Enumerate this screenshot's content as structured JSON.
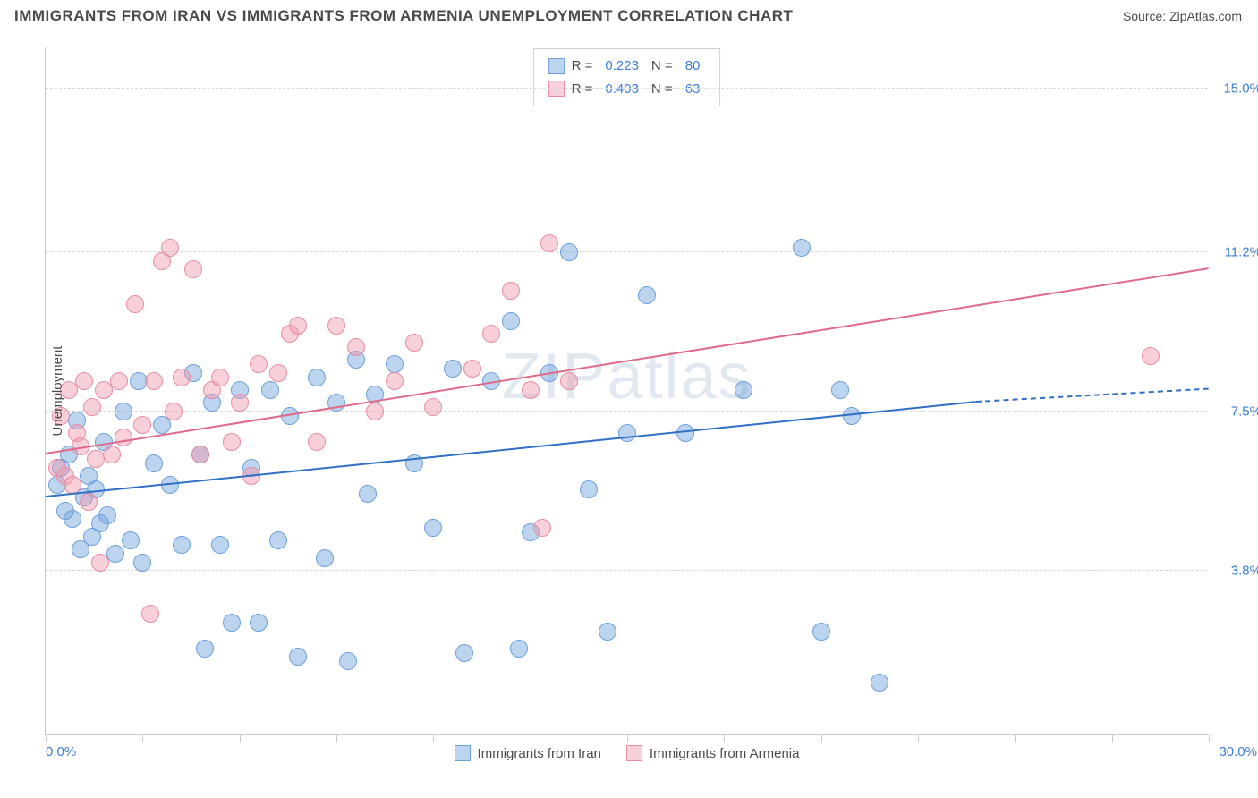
{
  "title": "IMMIGRANTS FROM IRAN VS IMMIGRANTS FROM ARMENIA UNEMPLOYMENT CORRELATION CHART",
  "source": "Source: ZipAtlas.com",
  "watermark": {
    "zip": "ZIP",
    "atlas": "atlas"
  },
  "y_axis": {
    "title": "Unemployment"
  },
  "chart": {
    "type": "scatter",
    "xlim": [
      0,
      30
    ],
    "ylim": [
      0,
      16
    ],
    "background_color": "#ffffff",
    "grid_color": "#d8d8d8",
    "marker_size": 20,
    "x_ticks": [
      0,
      2.5,
      5,
      7.5,
      10,
      12.5,
      15,
      17.5,
      20,
      22.5,
      25,
      27.5,
      30
    ],
    "y_gridlines": [
      3.8,
      7.5,
      11.2,
      15.0
    ],
    "y_tick_labels": [
      "3.8%",
      "7.5%",
      "11.2%",
      "15.0%"
    ],
    "x_min_label": "0.0%",
    "x_max_label": "30.0%"
  },
  "series": [
    {
      "key": "iran",
      "label": "Immigrants from Iran",
      "fill": "rgba(108,160,220,0.45)",
      "stroke": "#6ca0dc",
      "line_color": "#2f6fc4",
      "r_value": "0.223",
      "n_value": "80",
      "trend": {
        "x1": 0,
        "y1": 5.5,
        "x2": 24,
        "y2": 7.7,
        "dash_x2": 30,
        "dash_y2": 8.0
      },
      "points": [
        [
          0.3,
          5.8
        ],
        [
          0.4,
          6.2
        ],
        [
          0.5,
          5.2
        ],
        [
          0.6,
          6.5
        ],
        [
          0.7,
          5.0
        ],
        [
          0.8,
          7.3
        ],
        [
          0.9,
          4.3
        ],
        [
          1.0,
          5.5
        ],
        [
          1.1,
          6.0
        ],
        [
          1.2,
          4.6
        ],
        [
          1.3,
          5.7
        ],
        [
          1.4,
          4.9
        ],
        [
          1.5,
          6.8
        ],
        [
          1.6,
          5.1
        ],
        [
          1.8,
          4.2
        ],
        [
          2.0,
          7.5
        ],
        [
          2.2,
          4.5
        ],
        [
          2.4,
          8.2
        ],
        [
          2.5,
          4.0
        ],
        [
          2.8,
          6.3
        ],
        [
          3.0,
          7.2
        ],
        [
          3.2,
          5.8
        ],
        [
          3.5,
          4.4
        ],
        [
          3.8,
          8.4
        ],
        [
          4.0,
          6.5
        ],
        [
          4.1,
          2.0
        ],
        [
          4.3,
          7.7
        ],
        [
          4.5,
          4.4
        ],
        [
          4.8,
          2.6
        ],
        [
          5.0,
          8.0
        ],
        [
          5.3,
          6.2
        ],
        [
          5.5,
          2.6
        ],
        [
          5.8,
          8.0
        ],
        [
          6.0,
          4.5
        ],
        [
          6.3,
          7.4
        ],
        [
          6.5,
          1.8
        ],
        [
          7.0,
          8.3
        ],
        [
          7.2,
          4.1
        ],
        [
          7.5,
          7.7
        ],
        [
          7.8,
          1.7
        ],
        [
          8.0,
          8.7
        ],
        [
          8.3,
          5.6
        ],
        [
          8.5,
          7.9
        ],
        [
          9.0,
          8.6
        ],
        [
          9.5,
          6.3
        ],
        [
          10.0,
          4.8
        ],
        [
          10.5,
          8.5
        ],
        [
          10.8,
          1.9
        ],
        [
          11.5,
          8.2
        ],
        [
          12.0,
          9.6
        ],
        [
          12.2,
          2.0
        ],
        [
          12.5,
          4.7
        ],
        [
          13.0,
          8.4
        ],
        [
          13.5,
          11.2
        ],
        [
          14.0,
          5.7
        ],
        [
          14.5,
          2.4
        ],
        [
          15.0,
          7.0
        ],
        [
          15.5,
          10.2
        ],
        [
          16.5,
          7.0
        ],
        [
          18.0,
          8.0
        ],
        [
          19.5,
          11.3
        ],
        [
          20.0,
          2.4
        ],
        [
          20.5,
          8.0
        ],
        [
          20.8,
          7.4
        ],
        [
          21.5,
          1.2
        ]
      ]
    },
    {
      "key": "armenia",
      "label": "Immigrants from Armenia",
      "fill": "rgba(240,150,170,0.45)",
      "stroke": "#e88ba3",
      "line_color": "#e06a8a",
      "r_value": "0.403",
      "n_value": "63",
      "trend": {
        "x1": 0,
        "y1": 6.5,
        "x2": 30,
        "y2": 10.8
      },
      "points": [
        [
          0.3,
          6.2
        ],
        [
          0.4,
          7.4
        ],
        [
          0.5,
          6.0
        ],
        [
          0.6,
          8.0
        ],
        [
          0.7,
          5.8
        ],
        [
          0.8,
          7.0
        ],
        [
          0.9,
          6.7
        ],
        [
          1.0,
          8.2
        ],
        [
          1.1,
          5.4
        ],
        [
          1.2,
          7.6
        ],
        [
          1.3,
          6.4
        ],
        [
          1.4,
          4.0
        ],
        [
          1.5,
          8.0
        ],
        [
          1.7,
          6.5
        ],
        [
          1.9,
          8.2
        ],
        [
          2.0,
          6.9
        ],
        [
          2.3,
          10.0
        ],
        [
          2.5,
          7.2
        ],
        [
          2.7,
          2.8
        ],
        [
          2.8,
          8.2
        ],
        [
          3.0,
          11.0
        ],
        [
          3.2,
          11.3
        ],
        [
          3.3,
          7.5
        ],
        [
          3.5,
          8.3
        ],
        [
          3.8,
          10.8
        ],
        [
          4.0,
          6.5
        ],
        [
          4.3,
          8.0
        ],
        [
          4.5,
          8.3
        ],
        [
          4.8,
          6.8
        ],
        [
          5.0,
          7.7
        ],
        [
          5.3,
          6.0
        ],
        [
          5.5,
          8.6
        ],
        [
          6.0,
          8.4
        ],
        [
          6.3,
          9.3
        ],
        [
          6.5,
          9.5
        ],
        [
          7.0,
          6.8
        ],
        [
          7.5,
          9.5
        ],
        [
          8.0,
          9.0
        ],
        [
          8.5,
          7.5
        ],
        [
          9.0,
          8.2
        ],
        [
          9.5,
          9.1
        ],
        [
          10.0,
          7.6
        ],
        [
          11.0,
          8.5
        ],
        [
          11.5,
          9.3
        ],
        [
          12.0,
          10.3
        ],
        [
          12.5,
          8.0
        ],
        [
          13.0,
          11.4
        ],
        [
          12.8,
          4.8
        ],
        [
          13.5,
          8.2
        ],
        [
          28.5,
          8.8
        ]
      ]
    }
  ],
  "legend_top": {
    "r_label": "R  =",
    "n_label": "N  ="
  },
  "legend_bottom_swatch_size": 18
}
